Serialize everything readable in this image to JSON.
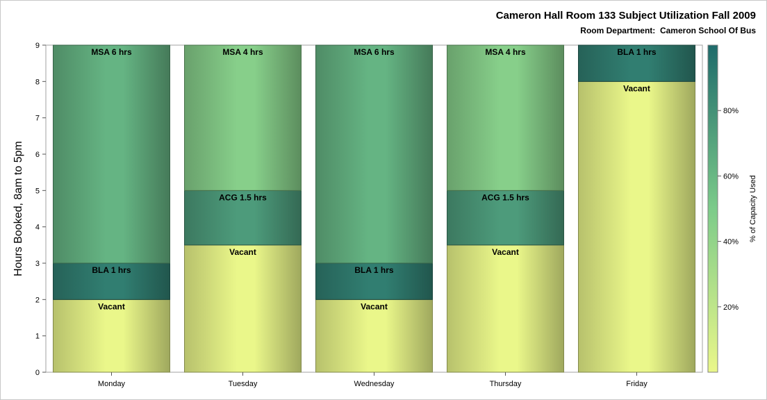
{
  "chart_data": {
    "type": "bar",
    "stacked": true,
    "title": "Cameron Hall Room 133 Subject Utilization Fall 2009",
    "subtitle": "Room Department:  Cameron School Of Bus",
    "ylabel": "Hours Booked, 8am to 5pm",
    "ylim": [
      0,
      9
    ],
    "yticks": [
      0,
      1,
      2,
      3,
      4,
      5,
      6,
      7,
      8,
      9
    ],
    "categories": [
      "Monday",
      "Tuesday",
      "Wednesday",
      "Thursday",
      "Friday"
    ],
    "bars": [
      {
        "category": "Monday",
        "segments": [
          {
            "label": "Vacant",
            "value": 2,
            "pct": 0
          },
          {
            "label": "BLA 1 hrs",
            "value": 1,
            "pct": 90
          },
          {
            "label": "MSA 6 hrs",
            "value": 6,
            "pct": 62
          }
        ]
      },
      {
        "category": "Tuesday",
        "segments": [
          {
            "label": "Vacant",
            "value": 3.5,
            "pct": 0
          },
          {
            "label": "ACG 1.5 hrs",
            "value": 1.5,
            "pct": 75
          },
          {
            "label": "MSA 4 hrs",
            "value": 4,
            "pct": 45
          }
        ]
      },
      {
        "category": "Wednesday",
        "segments": [
          {
            "label": "Vacant",
            "value": 2,
            "pct": 0
          },
          {
            "label": "BLA 1 hrs",
            "value": 1,
            "pct": 90
          },
          {
            "label": "MSA 6 hrs",
            "value": 6,
            "pct": 62
          }
        ]
      },
      {
        "category": "Thursday",
        "segments": [
          {
            "label": "Vacant",
            "value": 3.5,
            "pct": 0
          },
          {
            "label": "ACG 1.5 hrs",
            "value": 1.5,
            "pct": 75
          },
          {
            "label": "MSA 4 hrs",
            "value": 4,
            "pct": 45
          }
        ]
      },
      {
        "category": "Friday",
        "segments": [
          {
            "label": "Vacant",
            "value": 8,
            "pct": 0
          },
          {
            "label": "BLA 1 hrs",
            "value": 1,
            "pct": 90
          }
        ]
      }
    ],
    "colorbar": {
      "title": "% of Capacity Used",
      "ticks": [
        "20%",
        "40%",
        "60%",
        "80%"
      ],
      "tick_values": [
        20,
        40,
        60,
        80
      ],
      "range": [
        0,
        100
      ],
      "colors": [
        "#eaf78a",
        "#7ccb8a",
        "#1e6b6b"
      ]
    },
    "grid": false
  }
}
